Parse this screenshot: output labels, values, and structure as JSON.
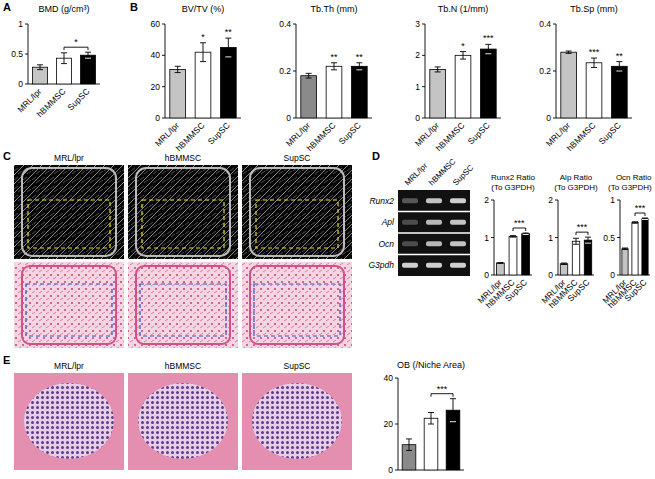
{
  "panel_letters": [
    "A",
    "B",
    "C",
    "D",
    "E"
  ],
  "chart_data": [
    {
      "type": "bar",
      "title": "BMD (g/cm³)",
      "categories": [
        "MRL/lpr",
        "hBMMSC",
        "SupSC"
      ],
      "values": [
        0.28,
        0.43,
        0.48
      ],
      "errors": [
        0.04,
        0.09,
        0.05
      ],
      "colors": [
        "#c4c4c4",
        "#ffffff",
        "#000000"
      ],
      "ylim": [
        0,
        1
      ],
      "yticks": [
        0,
        0.5,
        1
      ],
      "bracket": {
        "text": "*",
        "between": [
          1,
          2
        ]
      }
    },
    {
      "type": "bar",
      "title": "BV/TV (%)",
      "categories": [
        "MRL/lpr",
        "hBMMSC",
        "SupSC"
      ],
      "values": [
        31,
        42,
        45
      ],
      "errors": [
        2,
        6,
        6
      ],
      "colors": [
        "#c4c4c4",
        "#ffffff",
        "#000000"
      ],
      "ylim": [
        0,
        60
      ],
      "yticks": [
        0,
        20,
        40,
        60
      ],
      "significance": [
        null,
        "*",
        "**"
      ]
    },
    {
      "type": "bar",
      "title": "Tb.Th (mm)",
      "categories": [
        "MRL/lpr",
        "hBMMSC",
        "SupSC"
      ],
      "values": [
        0.18,
        0.22,
        0.22
      ],
      "errors": [
        0.01,
        0.015,
        0.015
      ],
      "colors": [
        "#8a8a8a",
        "#ffffff",
        "#000000"
      ],
      "ylim": [
        0,
        0.4
      ],
      "yticks": [
        0,
        0.2,
        0.4
      ],
      "significance": [
        null,
        "**",
        "**"
      ]
    },
    {
      "type": "bar",
      "title": "Tb.N (1/mm)",
      "categories": [
        "MRL/lpr",
        "hBMMSC",
        "SupSC"
      ],
      "values": [
        1.55,
        2.0,
        2.2
      ],
      "errors": [
        0.08,
        0.12,
        0.15
      ],
      "colors": [
        "#c4c4c4",
        "#ffffff",
        "#000000"
      ],
      "ylim": [
        0,
        3
      ],
      "yticks": [
        0,
        1,
        2,
        3
      ],
      "significance": [
        null,
        "*",
        "***"
      ]
    },
    {
      "type": "bar",
      "title": "Tb.Sp (mm)",
      "categories": [
        "MRL/lpr",
        "hBMMSC",
        "SupSC"
      ],
      "values": [
        0.28,
        0.235,
        0.22
      ],
      "errors": [
        0.005,
        0.02,
        0.02
      ],
      "colors": [
        "#c4c4c4",
        "#ffffff",
        "#000000"
      ],
      "ylim": [
        0,
        0.4
      ],
      "yticks": [
        0,
        0.2,
        0.4
      ],
      "significance": [
        null,
        "***",
        "**"
      ]
    },
    {
      "type": "bar",
      "title": "Runx2 Ratio",
      "subtitle": "(To G3PDH)",
      "categories": [
        "MRL/lpr",
        "hBMMSC",
        "SupSC"
      ],
      "values": [
        0.32,
        1.03,
        1.1
      ],
      "errors": [
        0.01,
        0.02,
        0.02
      ],
      "colors": [
        "#c4c4c4",
        "#ffffff",
        "#000000"
      ],
      "ylim": [
        0,
        2
      ],
      "yticks": [
        0,
        1,
        2
      ],
      "bracket": {
        "text": "***",
        "between": [
          1,
          2
        ]
      }
    },
    {
      "type": "bar",
      "title": "Alp Ratio",
      "subtitle": "(To G3PDH)",
      "categories": [
        "MRL/lpr",
        "hBMMSC",
        "SupSC"
      ],
      "values": [
        0.3,
        0.9,
        0.93
      ],
      "errors": [
        0.02,
        0.08,
        0.08
      ],
      "colors": [
        "#c4c4c4",
        "#ffffff",
        "#000000"
      ],
      "ylim": [
        0,
        2
      ],
      "yticks": [
        0,
        1,
        2
      ],
      "bracket": {
        "text": "***",
        "between": [
          1,
          2
        ]
      }
    },
    {
      "type": "bar",
      "title": "Ocn Ratio",
      "subtitle": "(To G3PDH)",
      "categories": [
        "MRL/lpr",
        "hBMMSC",
        "SupSC"
      ],
      "values": [
        0.35,
        0.7,
        0.75
      ],
      "errors": [
        0.01,
        0.01,
        0.01
      ],
      "colors": [
        "#c4c4c4",
        "#ffffff",
        "#000000"
      ],
      "ylim": [
        0,
        1
      ],
      "yticks": [
        0,
        0.5,
        1
      ],
      "bracket": {
        "text": "***",
        "between": [
          1,
          2
        ]
      }
    },
    {
      "type": "bar",
      "title": "OB (/Niche Area)",
      "categories": [
        null,
        null,
        null
      ],
      "values": [
        11,
        22.5,
        26
      ],
      "errors": [
        2.5,
        2.5,
        5
      ],
      "colors": [
        "#8a8a8a",
        "#ffffff",
        "#000000"
      ],
      "ylim": [
        0,
        40
      ],
      "yticks": [
        0,
        20,
        40
      ],
      "tick_labels": "y",
      "bracket": {
        "text": "***",
        "between": [
          1,
          2
        ]
      }
    }
  ],
  "panel_c": {
    "columns": [
      "MRL/lpr",
      "hBMMSC",
      "SupSC"
    ]
  },
  "panel_d_gel": {
    "columns": [
      "MRL/lpr",
      "hBMMSC",
      "SupSC"
    ],
    "rows": [
      "Runx2",
      "Apl",
      "Ocn",
      "G3pdh"
    ]
  },
  "panel_e": {
    "columns": [
      "MRL/lpr",
      "hBMMSC",
      "SupSC"
    ]
  }
}
